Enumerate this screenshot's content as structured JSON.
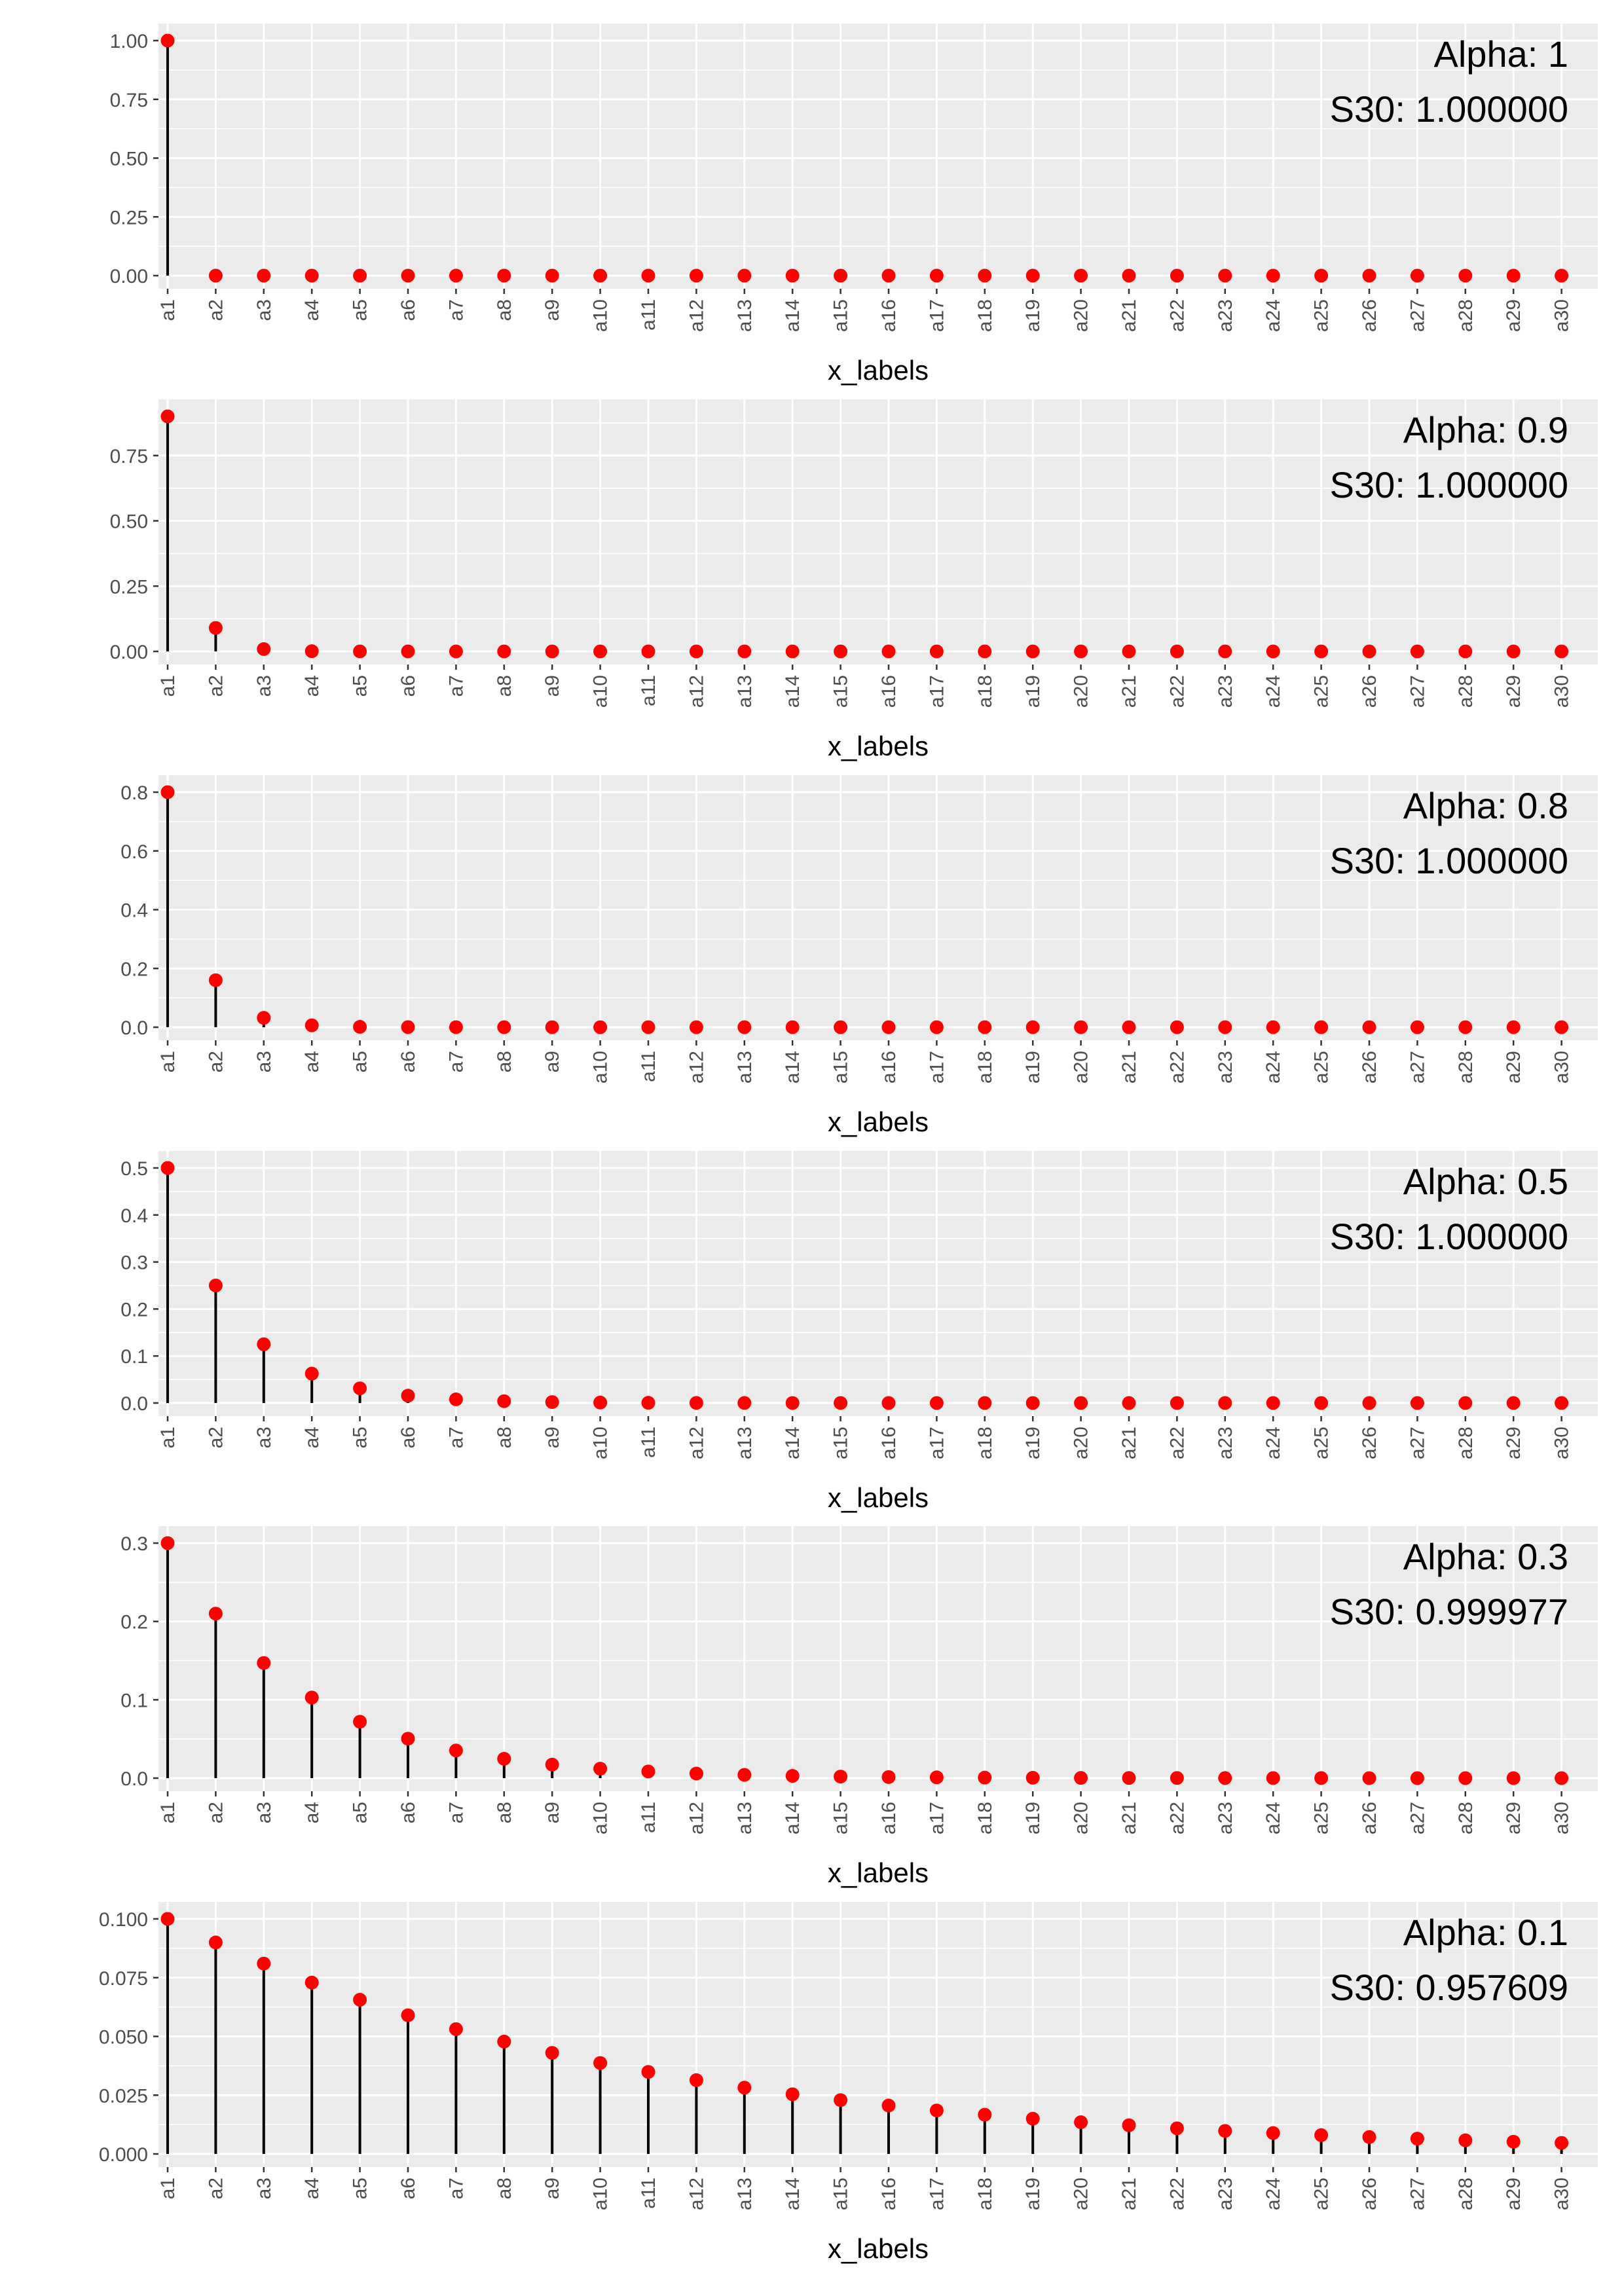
{
  "colors": {
    "panel_bg": "#ebebeb",
    "grid": "#ffffff",
    "point": "#ff0000",
    "stem": "#000000",
    "axis_text": "#4d4d4d",
    "axis_title": "#000000",
    "annotation_text": "#000000"
  },
  "chart_data": [
    {
      "type": "lollipop",
      "xlabel": "x_labels",
      "ylabel": "",
      "categories": [
        "a1",
        "a2",
        "a3",
        "a4",
        "a5",
        "a6",
        "a7",
        "a8",
        "a9",
        "a10",
        "a11",
        "a12",
        "a13",
        "a14",
        "a15",
        "a16",
        "a17",
        "a18",
        "a19",
        "a20",
        "a21",
        "a22",
        "a23",
        "a24",
        "a25",
        "a26",
        "a27",
        "a28",
        "a29",
        "a30"
      ],
      "values": [
        1,
        0,
        0,
        0,
        0,
        0,
        0,
        0,
        0,
        0,
        0,
        0,
        0,
        0,
        0,
        0,
        0,
        0,
        0,
        0,
        0,
        0,
        0,
        0,
        0,
        0,
        0,
        0,
        0,
        0
      ],
      "ylim": [
        0,
        1.0
      ],
      "yticks": [
        0,
        0.25,
        0.5,
        0.75,
        1.0
      ],
      "ytick_labels": [
        "0.00",
        "0.25",
        "0.50",
        "0.75",
        "1.00"
      ],
      "annotation_lines": [
        "Alpha: 1",
        "S30: 1.000000"
      ],
      "grid": true
    },
    {
      "type": "lollipop",
      "xlabel": "x_labels",
      "ylabel": "",
      "categories": [
        "a1",
        "a2",
        "a3",
        "a4",
        "a5",
        "a6",
        "a7",
        "a8",
        "a9",
        "a10",
        "a11",
        "a12",
        "a13",
        "a14",
        "a15",
        "a16",
        "a17",
        "a18",
        "a19",
        "a20",
        "a21",
        "a22",
        "a23",
        "a24",
        "a25",
        "a26",
        "a27",
        "a28",
        "a29",
        "a30"
      ],
      "values": [
        0.9,
        0.09,
        0.009,
        0.0009,
        9e-05,
        0,
        0,
        0,
        0,
        0,
        0,
        0,
        0,
        0,
        0,
        0,
        0,
        0,
        0,
        0,
        0,
        0,
        0,
        0,
        0,
        0,
        0,
        0,
        0,
        0
      ],
      "ylim": [
        0,
        0.9
      ],
      "yticks": [
        0,
        0.25,
        0.5,
        0.75
      ],
      "ytick_labels": [
        "0.00",
        "0.25",
        "0.50",
        "0.75"
      ],
      "annotation_lines": [
        "Alpha: 0.9",
        "S30: 1.000000"
      ],
      "grid": true
    },
    {
      "type": "lollipop",
      "xlabel": "x_labels",
      "ylabel": "",
      "categories": [
        "a1",
        "a2",
        "a3",
        "a4",
        "a5",
        "a6",
        "a7",
        "a8",
        "a9",
        "a10",
        "a11",
        "a12",
        "a13",
        "a14",
        "a15",
        "a16",
        "a17",
        "a18",
        "a19",
        "a20",
        "a21",
        "a22",
        "a23",
        "a24",
        "a25",
        "a26",
        "a27",
        "a28",
        "a29",
        "a30"
      ],
      "values": [
        0.8,
        0.16,
        0.032,
        0.0064,
        0.00128,
        0.000256,
        5.12e-05,
        1e-05,
        0,
        0,
        0,
        0,
        0,
        0,
        0,
        0,
        0,
        0,
        0,
        0,
        0,
        0,
        0,
        0,
        0,
        0,
        0,
        0,
        0,
        0
      ],
      "ylim": [
        0,
        0.8
      ],
      "yticks": [
        0,
        0.2,
        0.4,
        0.6,
        0.8
      ],
      "ytick_labels": [
        "0.0",
        "0.2",
        "0.4",
        "0.6",
        "0.8"
      ],
      "annotation_lines": [
        "Alpha: 0.8",
        "S30: 1.000000"
      ],
      "grid": true
    },
    {
      "type": "lollipop",
      "xlabel": "x_labels",
      "ylabel": "",
      "categories": [
        "a1",
        "a2",
        "a3",
        "a4",
        "a5",
        "a6",
        "a7",
        "a8",
        "a9",
        "a10",
        "a11",
        "a12",
        "a13",
        "a14",
        "a15",
        "a16",
        "a17",
        "a18",
        "a19",
        "a20",
        "a21",
        "a22",
        "a23",
        "a24",
        "a25",
        "a26",
        "a27",
        "a28",
        "a29",
        "a30"
      ],
      "values": [
        0.5,
        0.25,
        0.125,
        0.0625,
        0.03125,
        0.015625,
        0.0078125,
        0.0039,
        0.00195,
        0.00098,
        0.00049,
        0.00024,
        0.00012,
        6e-05,
        3e-05,
        1.5e-05,
        0,
        0,
        0,
        0,
        0,
        0,
        0,
        0,
        0,
        0,
        0,
        0,
        0,
        0
      ],
      "ylim": [
        0,
        0.5
      ],
      "yticks": [
        0,
        0.1,
        0.2,
        0.3,
        0.4,
        0.5
      ],
      "ytick_labels": [
        "0.0",
        "0.1",
        "0.2",
        "0.3",
        "0.4",
        "0.5"
      ],
      "annotation_lines": [
        "Alpha: 0.5",
        "S30: 1.000000"
      ],
      "grid": true
    },
    {
      "type": "lollipop",
      "xlabel": "x_labels",
      "ylabel": "",
      "categories": [
        "a1",
        "a2",
        "a3",
        "a4",
        "a5",
        "a6",
        "a7",
        "a8",
        "a9",
        "a10",
        "a11",
        "a12",
        "a13",
        "a14",
        "a15",
        "a16",
        "a17",
        "a18",
        "a19",
        "a20",
        "a21",
        "a22",
        "a23",
        "a24",
        "a25",
        "a26",
        "a27",
        "a28",
        "a29",
        "a30"
      ],
      "values": [
        0.3,
        0.21,
        0.147,
        0.1029,
        0.072,
        0.0504,
        0.0353,
        0.0247,
        0.0173,
        0.0121,
        0.0085,
        0.0059,
        0.0042,
        0.0029,
        0.002,
        0.0014,
        0.001,
        0.0007,
        0.0005,
        0.0003,
        0.0002,
        0.0002,
        0.0001,
        0.0001,
        0.0001,
        0,
        0,
        0,
        0,
        0
      ],
      "ylim": [
        0,
        0.3
      ],
      "yticks": [
        0,
        0.1,
        0.2,
        0.3
      ],
      "ytick_labels": [
        "0.0",
        "0.1",
        "0.2",
        "0.3"
      ],
      "annotation_lines": [
        "Alpha: 0.3",
        "S30: 0.999977"
      ],
      "grid": true
    },
    {
      "type": "lollipop",
      "xlabel": "x_labels",
      "ylabel": "",
      "categories": [
        "a1",
        "a2",
        "a3",
        "a4",
        "a5",
        "a6",
        "a7",
        "a8",
        "a9",
        "a10",
        "a11",
        "a12",
        "a13",
        "a14",
        "a15",
        "a16",
        "a17",
        "a18",
        "a19",
        "a20",
        "a21",
        "a22",
        "a23",
        "a24",
        "a25",
        "a26",
        "a27",
        "a28",
        "a29",
        "a30"
      ],
      "values": [
        0.1,
        0.09,
        0.081,
        0.0729,
        0.0656,
        0.059,
        0.0531,
        0.0478,
        0.043,
        0.0387,
        0.0349,
        0.0314,
        0.0282,
        0.0254,
        0.0229,
        0.0206,
        0.0185,
        0.0167,
        0.015,
        0.0135,
        0.0122,
        0.0109,
        0.0098,
        0.0089,
        0.008,
        0.0072,
        0.0065,
        0.0058,
        0.0052,
        0.0047
      ],
      "ylim": [
        0,
        0.1
      ],
      "yticks": [
        0,
        0.025,
        0.05,
        0.075,
        0.1
      ],
      "ytick_labels": [
        "0.000",
        "0.025",
        "0.050",
        "0.075",
        "0.100"
      ],
      "annotation_lines": [
        "Alpha: 0.1",
        "S30: 0.957609"
      ],
      "grid": true
    }
  ]
}
